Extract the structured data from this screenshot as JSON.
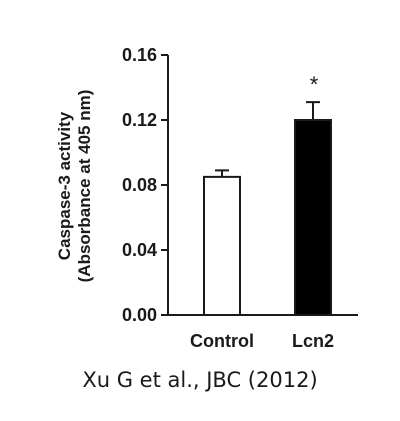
{
  "chart_data": {
    "type": "bar",
    "categories": [
      "Control",
      "Lcn2"
    ],
    "values": [
      0.085,
      0.12
    ],
    "errors": [
      0.004,
      0.011
    ],
    "bar_fills": [
      "#ffffff",
      "#000000"
    ],
    "annotations": [
      "",
      "*"
    ],
    "ylabel_line1": "Caspase-3 activity",
    "ylabel_line2": "(Absorbance at 405 nm)",
    "ylim": [
      0.0,
      0.16
    ],
    "yticks": [
      "0.00",
      "0.04",
      "0.08",
      "0.12",
      "0.16"
    ]
  },
  "citation": "Xu G et al., JBC (2012)"
}
